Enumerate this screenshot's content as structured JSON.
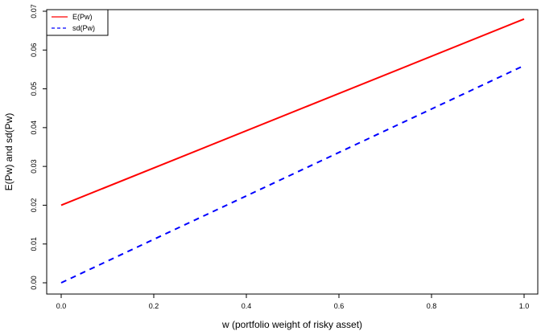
{
  "chart_data": {
    "type": "line",
    "xlabel": "w (portfolio weight of risky asset)",
    "ylabel": "E(Pw) and sd(Pw)",
    "xlim": [
      0.0,
      1.0
    ],
    "ylim": [
      0.0,
      0.07
    ],
    "x_ticks": [
      "0.0",
      "0.2",
      "0.4",
      "0.6",
      "0.8",
      "1.0"
    ],
    "y_ticks": [
      "0.00",
      "0.01",
      "0.02",
      "0.03",
      "0.04",
      "0.05",
      "0.06",
      "0.07"
    ],
    "grid": false,
    "legend_position": "top-left",
    "series": [
      {
        "name": "E(Pw)",
        "color": "#ff0000",
        "line_style": "solid",
        "x": [
          0.0,
          1.0
        ],
        "y": [
          0.02,
          0.068
        ]
      },
      {
        "name": "sd(Pw)",
        "color": "#0000ff",
        "line_style": "dashed",
        "x": [
          0.0,
          1.0
        ],
        "y": [
          0.0,
          0.056
        ]
      }
    ]
  }
}
